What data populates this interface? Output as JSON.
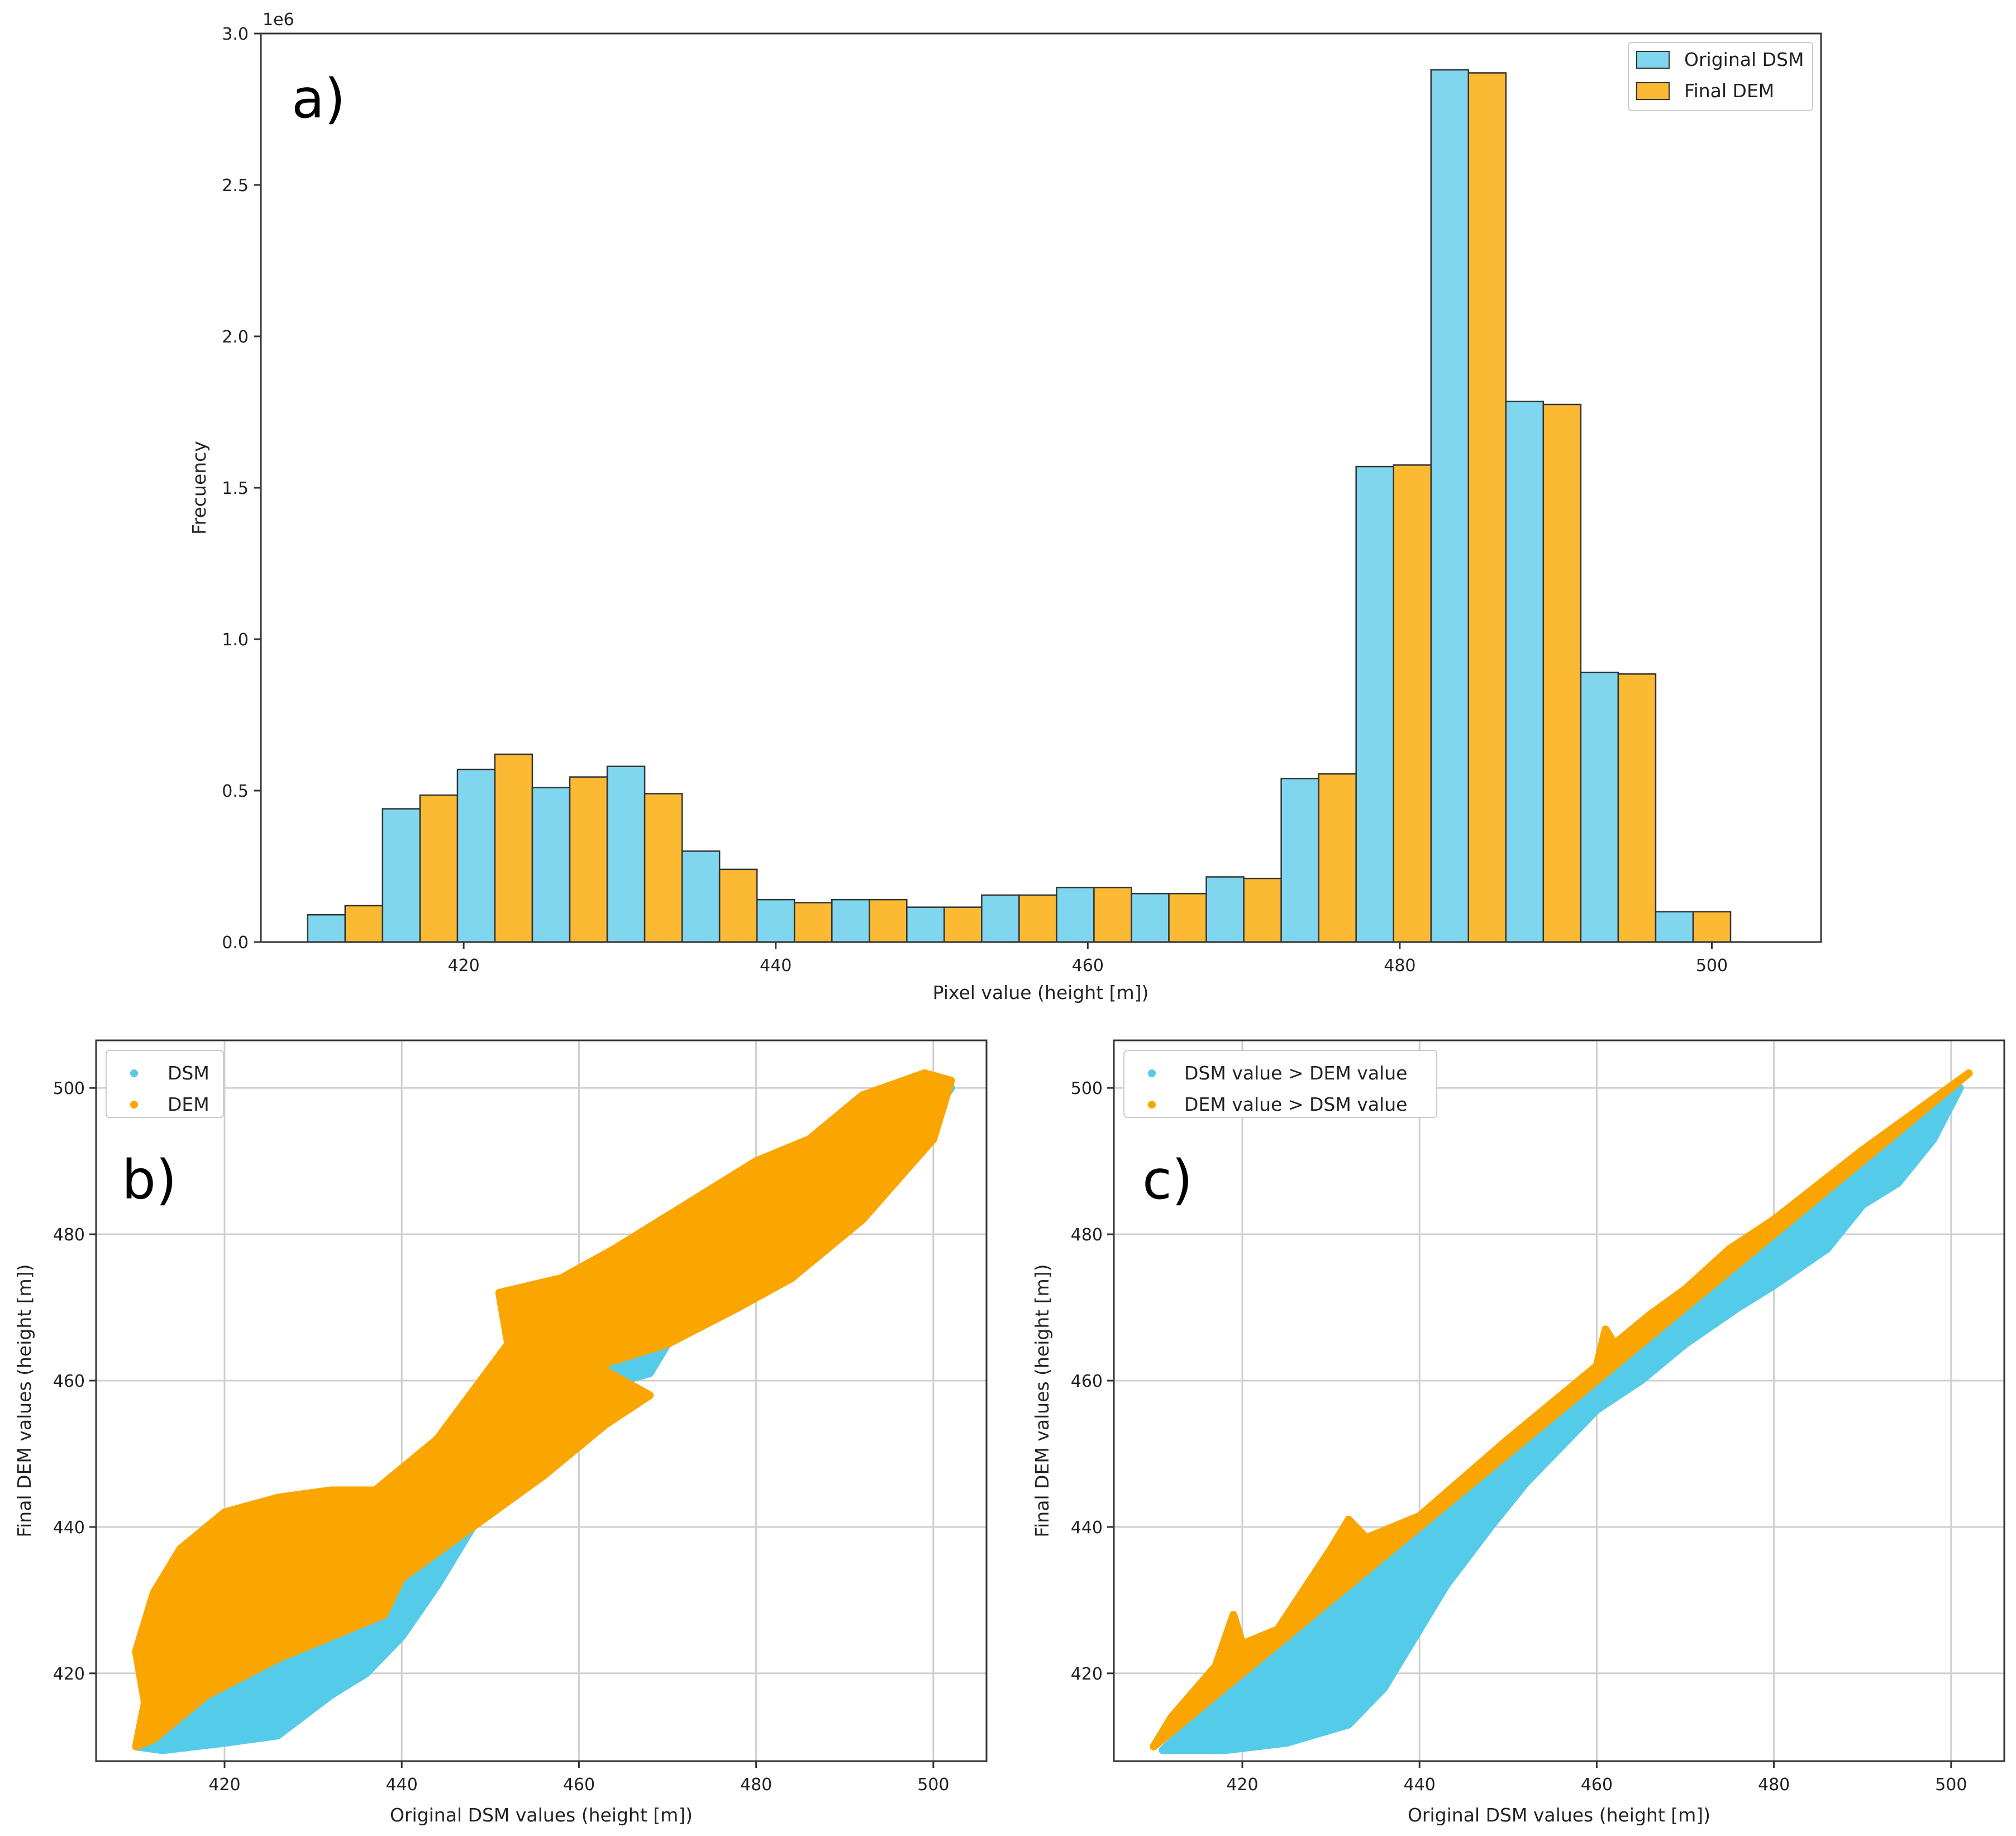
{
  "colors": {
    "dsm": "#7fd6ee",
    "dem": "#fbb934",
    "dsm_scatter": "#55cbea",
    "dem_scatter": "#fba600"
  },
  "chart_data": [
    {
      "type": "bar",
      "panel_label": "a)",
      "title": "",
      "xlabel": "Pixel value (height [m])",
      "ylabel": "Frecuency",
      "y_offset_text": "1e6",
      "xlim": [
        407,
        507
      ],
      "ylim": [
        0,
        3.0
      ],
      "x_ticks": [
        420,
        440,
        460,
        480,
        500
      ],
      "y_ticks": [
        "0.0",
        "0.5",
        "1.0",
        "1.5",
        "2.0",
        "2.5",
        "3.0"
      ],
      "legend": [
        "Original DSM",
        "Final DEM"
      ],
      "bin_width": 4.8,
      "bin_starts": [
        410,
        414.8,
        419.6,
        424.4,
        429.2,
        434,
        438.8,
        443.6,
        448.4,
        453.2,
        458,
        462.8,
        467.6,
        472.4,
        477.2,
        482,
        486.8,
        491.6,
        496.4
      ],
      "series": [
        {
          "name": "Original DSM",
          "values": [
            0.09,
            0.44,
            0.57,
            0.51,
            0.58,
            0.3,
            0.14,
            0.14,
            0.115,
            0.155,
            0.18,
            0.16,
            0.215,
            0.54,
            1.57,
            2.88,
            1.785,
            0.89,
            0.1
          ]
        },
        {
          "name": "Final DEM",
          "values": [
            0.12,
            0.485,
            0.62,
            0.545,
            0.49,
            0.24,
            0.13,
            0.14,
            0.115,
            0.155,
            0.18,
            0.16,
            0.21,
            0.555,
            1.575,
            2.87,
            1.775,
            0.885,
            0.1
          ]
        }
      ]
    },
    {
      "type": "scatter",
      "panel_label": "b)",
      "xlabel": "Original DSM values (height [m])",
      "ylabel": "Final DEM values (height [m])",
      "xlim": [
        405.5,
        506
      ],
      "ylim": [
        408,
        506.5
      ],
      "x_ticks": [
        420,
        440,
        460,
        480,
        500
      ],
      "y_ticks": [
        420,
        440,
        460,
        480,
        500
      ],
      "grid": true,
      "legend": [
        "DSM",
        "DEM"
      ],
      "series": [
        {
          "name": "DSM",
          "region": [
            [
              410,
              410
            ],
            [
              413,
              409.5
            ],
            [
              420,
              410.5
            ],
            [
              426,
              411.5
            ],
            [
              432,
              417
            ],
            [
              436,
              420
            ],
            [
              440,
              425
            ],
            [
              444,
              432
            ],
            [
              448,
              440
            ],
            [
              452,
              446
            ],
            [
              456,
              451
            ],
            [
              460,
              455
            ],
            [
              465,
              460
            ],
            [
              468,
              461
            ],
            [
              470,
              465
            ],
            [
              476,
              470
            ],
            [
              480,
              473
            ],
            [
              486,
              478
            ],
            [
              490,
              484
            ],
            [
              494,
              487
            ],
            [
              498,
              493
            ],
            [
              502,
              500
            ],
            [
              490,
              492
            ],
            [
              480,
              482
            ],
            [
              470,
              470
            ],
            [
              460,
              461
            ],
            [
              450,
              450
            ],
            [
              440,
              439
            ],
            [
              430,
              430
            ],
            [
              420,
              420
            ],
            [
              412,
              412
            ]
          ]
        },
        {
          "name": "DEM",
          "region": [
            [
              410,
              410
            ],
            [
              412,
              411
            ],
            [
              418,
              417
            ],
            [
              426,
              422
            ],
            [
              432,
              425
            ],
            [
              438,
              428
            ],
            [
              440,
              433
            ],
            [
              448,
              440
            ],
            [
              456,
              447
            ],
            [
              463,
              454
            ],
            [
              468,
              458
            ],
            [
              462,
              462
            ],
            [
              470,
              465
            ],
            [
              478,
              470
            ],
            [
              484,
              474
            ],
            [
              492,
              482
            ],
            [
              500,
              493
            ],
            [
              502,
              501
            ],
            [
              499,
              502
            ],
            [
              492,
              499
            ],
            [
              486,
              493
            ],
            [
              480,
              490
            ],
            [
              472,
              484
            ],
            [
              464,
              478
            ],
            [
              458,
              474
            ],
            [
              451,
              472
            ],
            [
              452,
              465
            ],
            [
              444,
              452
            ],
            [
              437,
              445
            ],
            [
              432,
              445
            ],
            [
              426,
              444
            ],
            [
              420,
              442
            ],
            [
              415,
              437
            ],
            [
              412,
              431
            ],
            [
              410,
              423
            ],
            [
              411,
              416
            ]
          ]
        }
      ]
    },
    {
      "type": "scatter",
      "panel_label": "c)",
      "xlabel": "Original DSM values (height [m])",
      "ylabel": "Final DEM values (height [m])",
      "xlim": [
        405.5,
        506
      ],
      "ylim": [
        408,
        506.5
      ],
      "x_ticks": [
        420,
        440,
        460,
        480,
        500
      ],
      "y_ticks": [
        420,
        440,
        460,
        480,
        500
      ],
      "grid": true,
      "legend": [
        "DSM value > DEM value",
        "DEM value > DSM value"
      ],
      "series": [
        {
          "name": "DSM value > DEM value",
          "region": [
            [
              411,
              409.5
            ],
            [
              418,
              409.5
            ],
            [
              425,
              410.5
            ],
            [
              432,
              413
            ],
            [
              436,
              418
            ],
            [
              439,
              424
            ],
            [
              443,
              432
            ],
            [
              448,
              440
            ],
            [
              452,
              446
            ],
            [
              456,
              451
            ],
            [
              460,
              456
            ],
            [
              465,
              460
            ],
            [
              470,
              465
            ],
            [
              476,
              470
            ],
            [
              480,
              473
            ],
            [
              486,
              478
            ],
            [
              490,
              484
            ],
            [
              494,
              487
            ],
            [
              498,
              493
            ],
            [
              501,
              500
            ],
            [
              480,
              479.5
            ],
            [
              460,
              459.5
            ],
            [
              440,
              439.5
            ],
            [
              420,
              419.5
            ]
          ]
        },
        {
          "name": "DEM value > DSM value",
          "region": [
            [
              410,
              410
            ],
            [
              420,
              420
            ],
            [
              430,
              430
            ],
            [
              440,
              440
            ],
            [
              450,
              450
            ],
            [
              460,
              460
            ],
            [
              470,
              470
            ],
            [
              480,
              480
            ],
            [
              490,
              490
            ],
            [
              502,
              502
            ],
            [
              490,
              491.5
            ],
            [
              480,
              482
            ],
            [
              475,
              478
            ],
            [
              470,
              472.5
            ],
            [
              466,
              469
            ],
            [
              462,
              465
            ],
            [
              461,
              467
            ],
            [
              460,
              462
            ],
            [
              450,
              452
            ],
            [
              440,
              441.5
            ],
            [
              434,
              438.5
            ],
            [
              432,
              441
            ],
            [
              430,
              437
            ],
            [
              424,
              426
            ],
            [
              420,
              424
            ],
            [
              419,
              428
            ],
            [
              417,
              421
            ],
            [
              412,
              414
            ]
          ]
        }
      ]
    }
  ]
}
